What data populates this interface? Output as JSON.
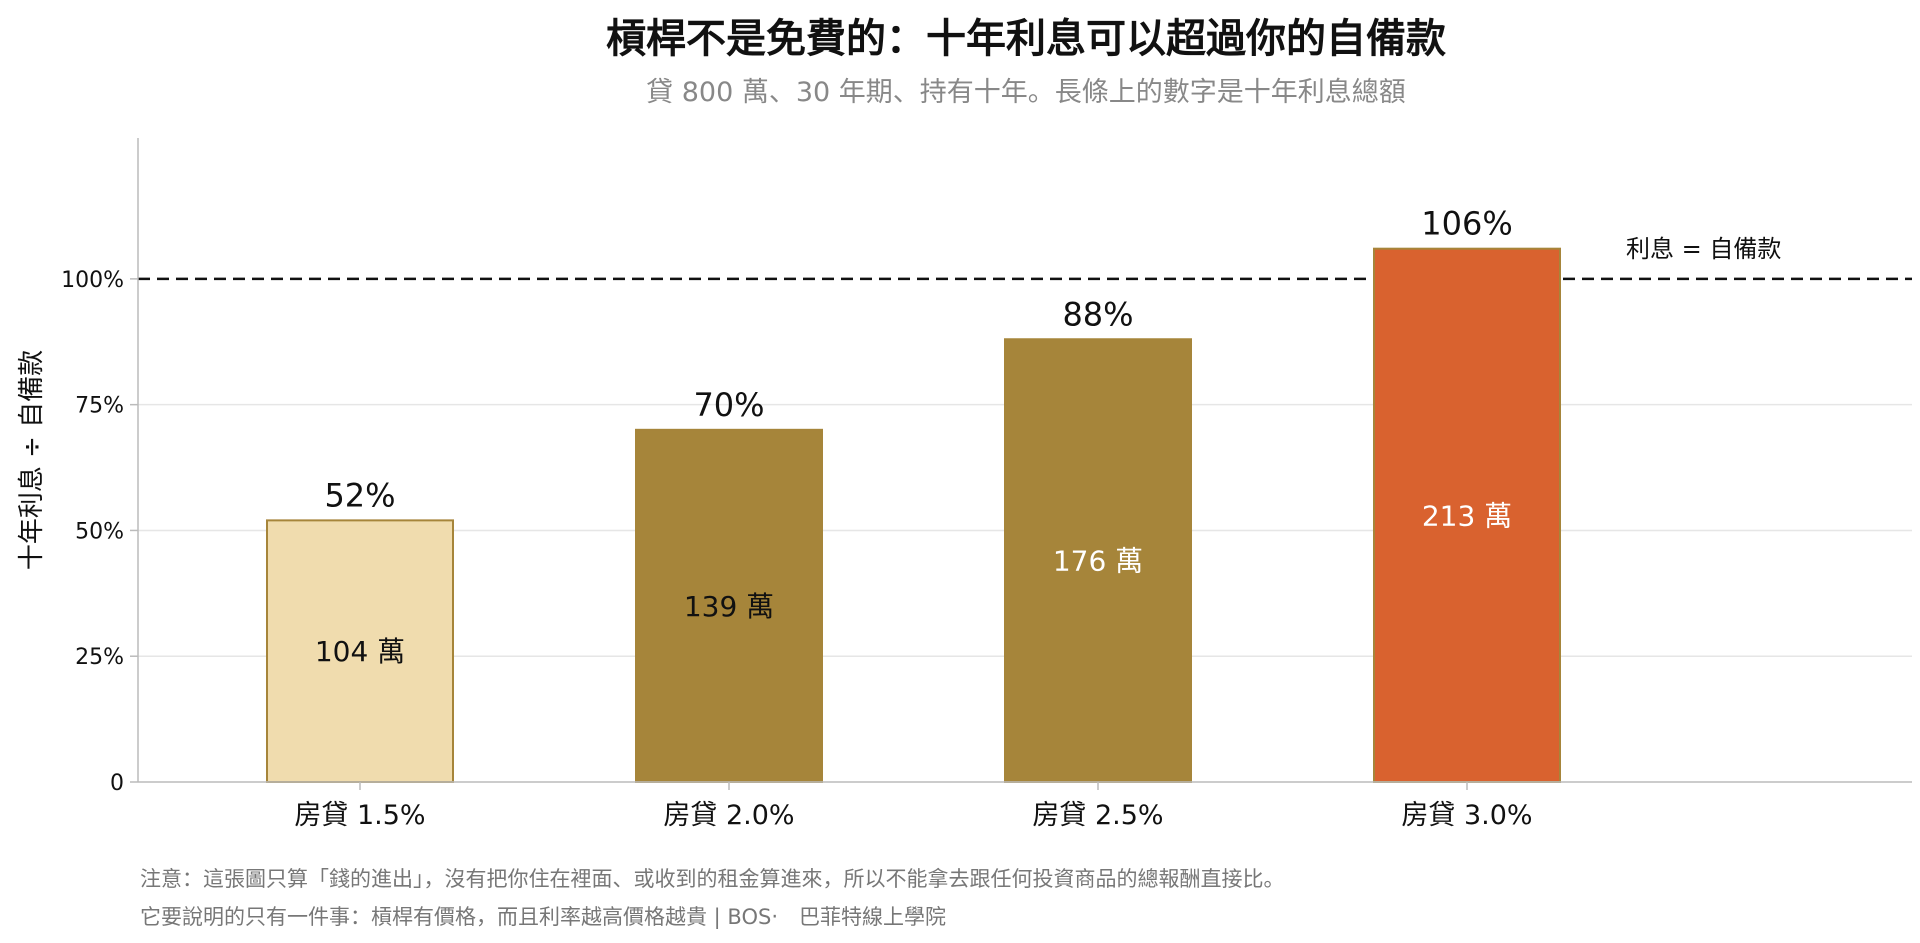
{
  "chart_data": {
    "type": "bar",
    "title": "槓桿不是免費的：十年利息可以超過你的自備款",
    "subtitle": "貸 800 萬、30 年期、持有十年。長條上的數字是十年利息總額",
    "ylabel": "十年利息 ÷ 自備款",
    "xlabel": "",
    "categories": [
      "房貸 1.5%",
      "房貸 2.0%",
      "房貸 2.5%",
      "房貸 3.0%"
    ],
    "values": [
      52,
      70,
      88,
      106
    ],
    "value_labels": [
      "52%",
      "70%",
      "88%",
      "106%"
    ],
    "inner_labels": [
      "104 萬",
      "139 萬",
      "176 萬",
      "213 萬"
    ],
    "ylim": [
      0,
      128
    ],
    "yticks": [
      0,
      25,
      50,
      75,
      100
    ],
    "ytick_labels": [
      "0",
      "25%",
      "50%",
      "75%",
      "100%"
    ],
    "reference_line": {
      "value": 100,
      "label": "利息 = 自備款",
      "style": "dashed"
    },
    "grid": "horizontal",
    "legend": "none",
    "colors": {
      "bars": [
        "#f0dcae",
        "#a6853a",
        "#a6853a",
        "#d9622f"
      ],
      "bar_edge": "#a6853a",
      "inner_label_colors": [
        "#111111",
        "#111111",
        "#ffffff",
        "#ffffff"
      ],
      "grid": "#e6e6e6",
      "axis": "#bbbbbb",
      "reference_line": "#111111"
    },
    "notes": [
      "注意：這張圖只算「錢的進出」，沒有把你住在裡面、或收到的租金算進來，所以不能拿去跟任何投資商品的總報酬直接比。",
      "它要說明的只有一件事：槓桿有價格，而且利率越高價格越貴 | BOS‧　巴菲特線上學院"
    ]
  }
}
